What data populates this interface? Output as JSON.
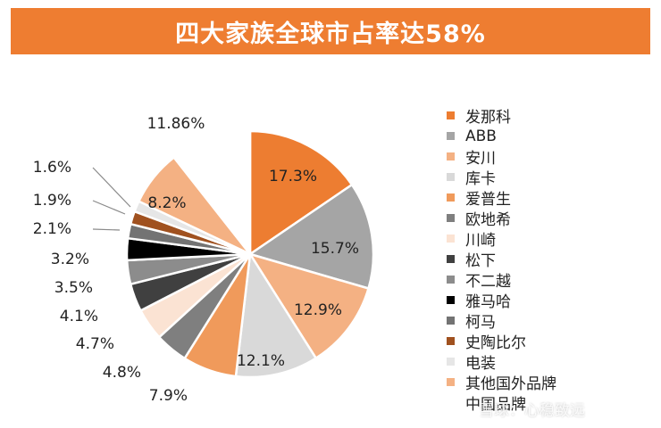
{
  "title": "四大家族全球市占率达58%",
  "watermark": "雪球：心稳致远",
  "chart_data": {
    "type": "pie",
    "title": "四大家族全球市占率达58%",
    "series": [
      {
        "name": "发那科",
        "value": 17.3,
        "label": "17.3%",
        "color": "#ed7d31"
      },
      {
        "name": "ABB",
        "value": 15.7,
        "label": "15.7%",
        "color": "#a5a5a5"
      },
      {
        "name": "安川",
        "value": 12.9,
        "label": "12.9%",
        "color": "#f4b183"
      },
      {
        "name": "库卡",
        "value": 12.1,
        "label": "12.1%",
        "color": "#d9d9d9"
      },
      {
        "name": "爱普生",
        "value": 7.9,
        "label": "7.9%",
        "color": "#f09a5b"
      },
      {
        "name": "欧地希",
        "value": 4.8,
        "label": "4.8%",
        "color": "#7f7f7f"
      },
      {
        "name": "川崎",
        "value": 4.7,
        "label": "4.7%",
        "color": "#fbe3d3"
      },
      {
        "name": "松下",
        "value": 4.1,
        "label": "4.1%",
        "color": "#404040"
      },
      {
        "name": "不二越",
        "value": 3.5,
        "label": "3.5%",
        "color": "#8c8c8c"
      },
      {
        "name": "雅马哈",
        "value": 3.2,
        "label": "3.2%",
        "color": "#000000"
      },
      {
        "name": "柯马",
        "value": 2.1,
        "label": "2.1%",
        "color": "#737373"
      },
      {
        "name": "史陶比尔",
        "value": 1.9,
        "label": "1.9%",
        "color": "#a0511f"
      },
      {
        "name": "电装",
        "value": 1.6,
        "label": "1.6%",
        "color": "#e6e6e6"
      },
      {
        "name": "其他国外品牌",
        "value": 8.2,
        "label": "8.2%",
        "color": "#f4b183"
      },
      {
        "name": "中国品牌",
        "value": 11.86,
        "label": "11.86%",
        "color": "#ffffff"
      }
    ]
  }
}
